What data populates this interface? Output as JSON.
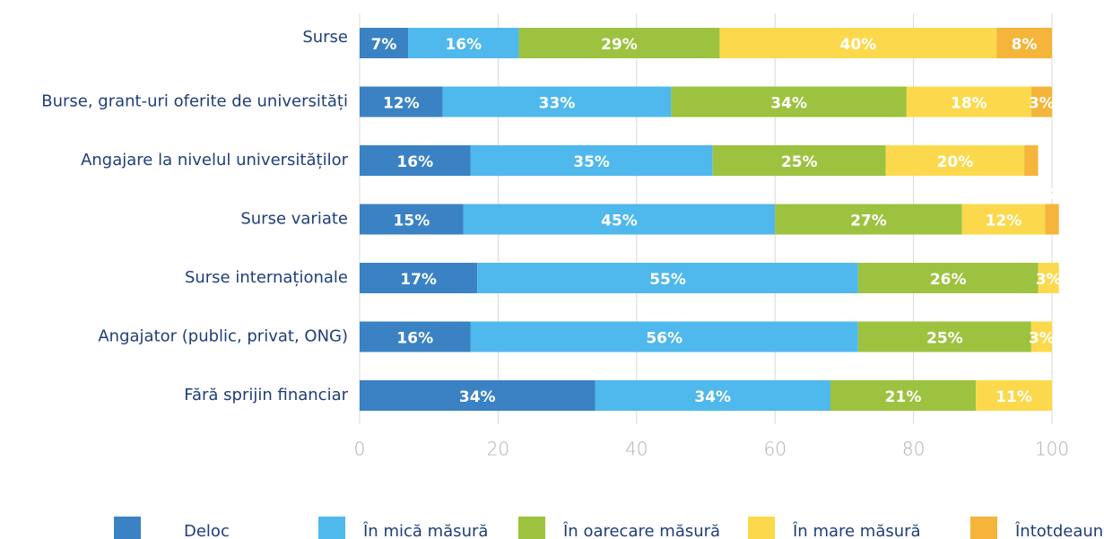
{
  "chart_data": {
    "type": "stacked-barh",
    "categories": [
      "Surse",
      "Burse, grant-uri oferite de universități",
      "Angajare la nivelul universităților",
      "Surse variate",
      "Surse internaționale",
      "Angajator (public, privat, ONG)",
      "Fără sprijin financiar"
    ],
    "series": [
      {
        "name": "Deloc",
        "color": "#3b82c4",
        "values": [
          7,
          12,
          16,
          15,
          17,
          16,
          34
        ],
        "value_labels": [
          "7%",
          "12%",
          "16%",
          "15%",
          "17%",
          "16%",
          "34%"
        ]
      },
      {
        "name": "În mică măsură",
        "color": "#4fb8ec",
        "values": [
          16,
          33,
          35,
          45,
          55,
          56,
          34
        ],
        "value_labels": [
          "16%",
          "33%",
          "35%",
          "45%",
          "55%",
          "56%",
          "34%"
        ]
      },
      {
        "name": "În oarecare măsură",
        "color": "#9dc240",
        "values": [
          29,
          34,
          25,
          27,
          26,
          25,
          21
        ],
        "value_labels": [
          "29%",
          "34%",
          "25%",
          "27%",
          "26%",
          "25%",
          "21%"
        ]
      },
      {
        "name": "În mare măsură",
        "color": "#fcd94c",
        "values": [
          40,
          18,
          20,
          12,
          3,
          3,
          11
        ],
        "value_labels": [
          "40%",
          "18%",
          "20%",
          "12%",
          "3%",
          "3%",
          "11%"
        ]
      },
      {
        "name": "Întotdeauna",
        "color": "#f5b43a",
        "values": [
          8,
          3,
          2,
          2,
          null,
          null,
          null
        ],
        "value_labels": [
          "8%",
          "3%",
          "2%",
          "2%",
          null,
          null,
          null
        ]
      }
    ],
    "xlim": [
      0,
      100
    ],
    "xticks": [
      0,
      20,
      40,
      60,
      80,
      100
    ],
    "grid": true,
    "legend": "bottom"
  }
}
